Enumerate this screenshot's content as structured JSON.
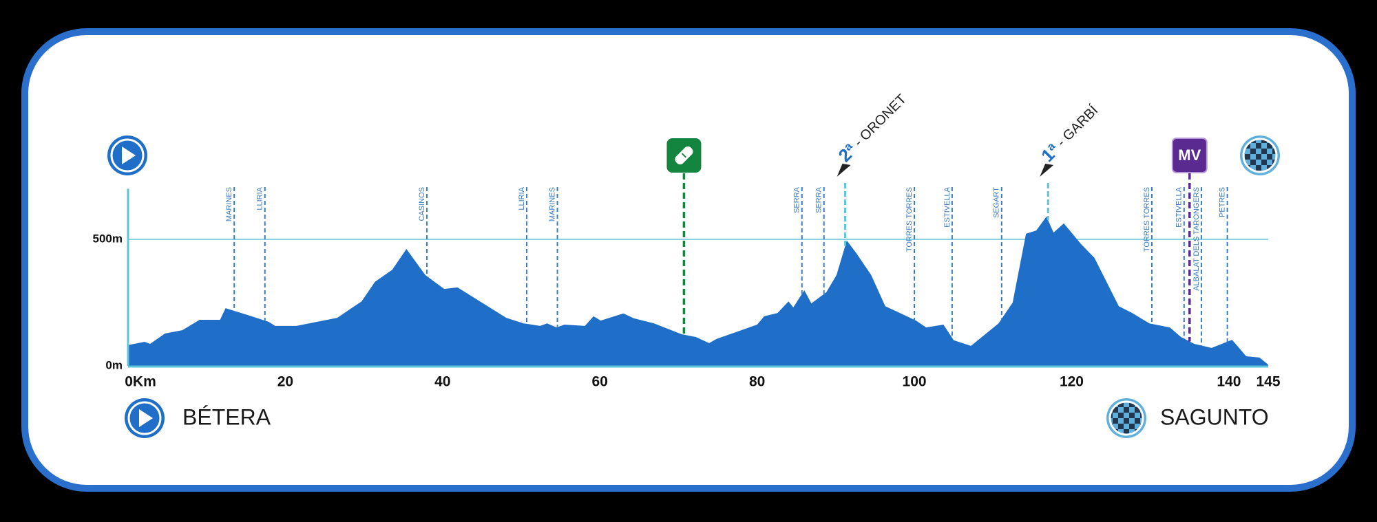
{
  "chart_data": {
    "type": "area",
    "color": "#1f6fc8",
    "x": [
      0,
      2.1,
      2.8,
      4.7,
      6.9,
      9.1,
      11.7,
      12.4,
      15.2,
      17.9,
      18.7,
      21.4,
      26.6,
      29.7,
      31.4,
      33.6,
      35.4,
      37.8,
      40.2,
      41.9,
      45,
      48.1,
      50.3,
      52.4,
      53.3,
      54.5,
      55.5,
      58.1,
      59.2,
      60.1,
      63,
      64.3,
      66.9,
      70.4,
      72.2,
      73.9,
      74.8,
      80,
      80.9,
      82.6,
      84,
      84.6,
      86,
      86.9,
      88.8,
      90.1,
      91.4,
      92.6,
      94.5,
      96.3,
      97.6,
      100.2,
      101.5,
      103.7,
      105,
      107.2,
      110.7,
      112.5,
      114.2,
      115.5,
      116.8,
      117.7,
      119,
      121.2,
      122.9,
      126,
      127.7,
      129.9,
      132.5,
      133.9,
      135.6,
      137.8,
      139.1,
      140.4,
      142.2,
      143.9,
      145
    ],
    "values": [
      82,
      95,
      87,
      128,
      141,
      182,
      182,
      228,
      201,
      174,
      158,
      158,
      190,
      255,
      332,
      380,
      462,
      359,
      304,
      310,
      250,
      190,
      168,
      158,
      168,
      152,
      163,
      158,
      196,
      179,
      207,
      188,
      168,
      125,
      114,
      90,
      106,
      163,
      196,
      209,
      255,
      231,
      299,
      247,
      291,
      359,
      495,
      446,
      359,
      236,
      217,
      179,
      152,
      163,
      101,
      79,
      168,
      250,
      522,
      535,
      590,
      527,
      563,
      481,
      427,
      236,
      209,
      168,
      152,
      114,
      87,
      71,
      87,
      103,
      38,
      33,
      5
    ],
    "xlim": [
      0,
      145
    ],
    "ylim": [
      0,
      700
    ],
    "xticks": [
      {
        "value": 0,
        "label": "0Km"
      },
      20,
      40,
      60,
      80,
      100,
      120,
      140,
      145
    ],
    "yticks": [
      {
        "value": 0,
        "label": "0m"
      },
      {
        "value": 500,
        "label": "500m"
      }
    ],
    "grid": true,
    "towns": [
      {
        "km": 13.5,
        "name": "MARINES"
      },
      {
        "km": 17.4,
        "name": "LLIRIA"
      },
      {
        "km": 38,
        "name": "CASINOS"
      },
      {
        "km": 50.7,
        "name": "LLIRIA"
      },
      {
        "km": 54.6,
        "name": "MARINES"
      },
      {
        "km": 85.7,
        "name": "SERRA"
      },
      {
        "km": 88.5,
        "name": "SERRA"
      },
      {
        "km": 100,
        "name": "TORRES TORRES"
      },
      {
        "km": 104.8,
        "name": "ESTIVELLA"
      },
      {
        "km": 111.1,
        "name": "SEGART"
      },
      {
        "km": 130.2,
        "name": "TORRES TORRES"
      },
      {
        "km": 134.3,
        "name": "ESTIVELLA"
      },
      {
        "km": 136.5,
        "name": "ALBALAT DELS TARONGERS"
      },
      {
        "km": 139.8,
        "name": "PETRES"
      }
    ],
    "climbs": [
      {
        "km": 91.2,
        "rank": "2ª",
        "name": "- ORONET"
      },
      {
        "km": 117,
        "rank": "1ª",
        "name": "- GARBÍ"
      }
    ],
    "feed_zone": {
      "km": 70.7
    },
    "mv": {
      "km": 135,
      "label": "MV"
    },
    "start": {
      "name": "BÉTERA"
    },
    "finish": {
      "name": "SAGUNTO"
    }
  }
}
